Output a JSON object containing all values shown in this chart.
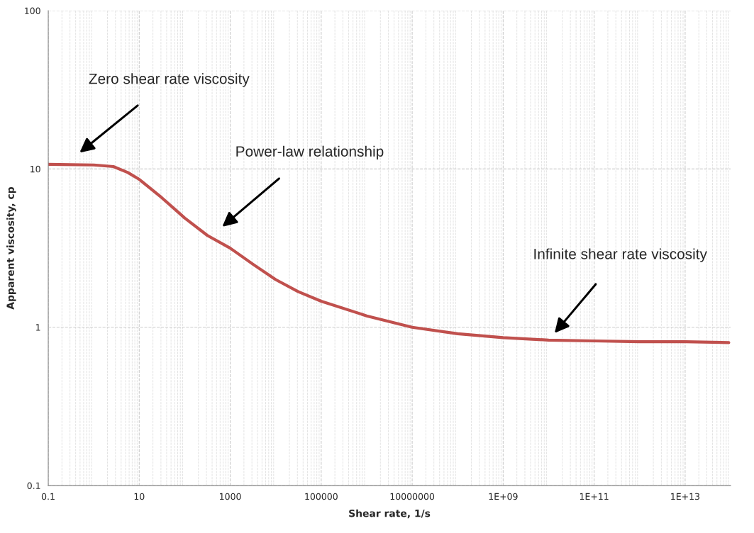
{
  "chart_data": {
    "type": "line",
    "xlabel": "Shear rate, 1/s",
    "ylabel": "Apparent viscosity, cp",
    "x": [
      0.1,
      1,
      2.7,
      5.6,
      10,
      31,
      100,
      316,
      1000,
      3300,
      10000,
      31000,
      100000,
      1000000,
      10000000,
      100000000,
      1000000000,
      10000000000,
      100000000000,
      1000000000000,
      10000000000000,
      91000000000000
    ],
    "series": [
      {
        "color": "#c0504d",
        "values": [
          10.7,
          10.6,
          10.35,
          9.5,
          8.6,
          6.6,
          4.9,
          3.8,
          3.16,
          2.48,
          2.0,
          1.68,
          1.46,
          1.18,
          1.0,
          0.91,
          0.86,
          0.83,
          0.82,
          0.81,
          0.81,
          0.8
        ]
      }
    ],
    "log": "xy",
    "xlim": [
      0.1,
      100000000000000
    ],
    "ylim": [
      0.1,
      100
    ],
    "xticks": [
      0.1,
      10,
      1000,
      100000,
      10000000,
      {
        "value": 1000000000,
        "label": "1E+09"
      },
      {
        "value": 100000000000,
        "label": "1E+11"
      },
      {
        "value": 10000000000000,
        "label": "1E+13"
      }
    ],
    "yticks": [
      0.1,
      1,
      10,
      100
    ],
    "grid": true,
    "marker": "none",
    "line_style": "solid",
    "legend": false,
    "annotations": [
      "Zero shear rate viscosity",
      "Power-law relationship",
      "Infinite shear rate viscosity"
    ]
  }
}
